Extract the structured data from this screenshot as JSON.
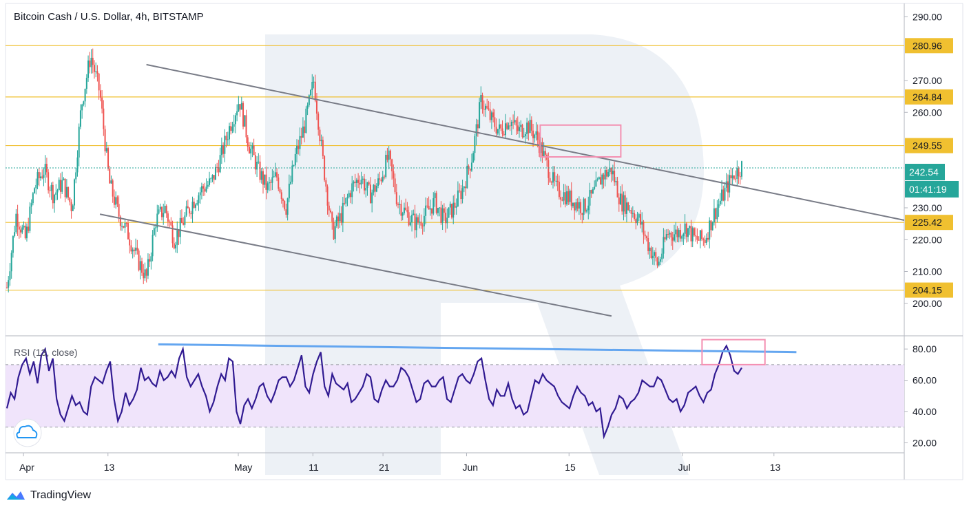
{
  "header": {
    "title": "Bitcoin Cash / U.S. Dollar, 4h, BITSTAMP"
  },
  "chart_data": [
    {
      "type": "candlestick",
      "title": "Bitcoin Cash / U.S. Dollar, 4h, BITSTAMP",
      "ylim": [
        190,
        294
      ],
      "y_ticks": [
        "290.00",
        "270.00",
        "260.00",
        "230.00",
        "220.00",
        "210.00",
        "200.00"
      ],
      "x_ticks": [
        "Apr",
        "13",
        "May",
        "11",
        "21",
        "Jun",
        "15",
        "Jul",
        "13"
      ],
      "last_price": "242.54",
      "countdown": "01:41:19",
      "levels": [
        {
          "value": 280.96,
          "label": "280.96"
        },
        {
          "value": 264.84,
          "label": "264.84"
        },
        {
          "value": 249.55,
          "label": "249.55"
        },
        {
          "value": 225.42,
          "label": "225.42"
        },
        {
          "value": 204.15,
          "label": "204.15"
        }
      ],
      "colors": {
        "up": "#26a69a",
        "down": "#ef5350",
        "level": "#f0c030",
        "trend": "#787b86",
        "price_line": "#26a69a",
        "box": "#f48fb1"
      },
      "price_path": [
        [
          0,
          205
        ],
        [
          6,
          228
        ],
        [
          12,
          220
        ],
        [
          18,
          237
        ],
        [
          24,
          242
        ],
        [
          30,
          234
        ],
        [
          36,
          238
        ],
        [
          42,
          230
        ],
        [
          48,
          262
        ],
        [
          54,
          278
        ],
        [
          60,
          266
        ],
        [
          66,
          238
        ],
        [
          72,
          228
        ],
        [
          78,
          222
        ],
        [
          84,
          214
        ],
        [
          90,
          208
        ],
        [
          96,
          226
        ],
        [
          102,
          230
        ],
        [
          108,
          220
        ],
        [
          114,
          226
        ],
        [
          120,
          232
        ],
        [
          126,
          236
        ],
        [
          132,
          238
        ],
        [
          138,
          246
        ],
        [
          144,
          256
        ],
        [
          150,
          264
        ],
        [
          156,
          250
        ],
        [
          162,
          242
        ],
        [
          168,
          236
        ],
        [
          174,
          240
        ],
        [
          180,
          230
        ],
        [
          186,
          246
        ],
        [
          192,
          256
        ],
        [
          198,
          270
        ],
        [
          204,
          244
        ],
        [
          210,
          222
        ],
        [
          216,
          228
        ],
        [
          222,
          236
        ],
        [
          228,
          240
        ],
        [
          234,
          234
        ],
        [
          240,
          238
        ],
        [
          246,
          246
        ],
        [
          252,
          232
        ],
        [
          258,
          228
        ],
        [
          264,
          225
        ],
        [
          270,
          228
        ],
        [
          276,
          232
        ],
        [
          282,
          226
        ],
        [
          288,
          230
        ],
        [
          294,
          236
        ],
        [
          300,
          246
        ],
        [
          306,
          264
        ],
        [
          312,
          258
        ],
        [
          318,
          254
        ],
        [
          324,
          258
        ],
        [
          330,
          254
        ],
        [
          336,
          256
        ],
        [
          342,
          252
        ],
        [
          348,
          244
        ],
        [
          354,
          236
        ],
        [
          360,
          234
        ],
        [
          366,
          232
        ],
        [
          372,
          230
        ],
        [
          378,
          234
        ],
        [
          384,
          240
        ],
        [
          390,
          242
        ],
        [
          396,
          232
        ],
        [
          402,
          230
        ],
        [
          408,
          226
        ],
        [
          414,
          218
        ],
        [
          420,
          212
        ],
        [
          426,
          222
        ],
        [
          432,
          222
        ],
        [
          438,
          224
        ],
        [
          444,
          220
        ],
        [
          450,
          220
        ],
        [
          456,
          228
        ],
        [
          462,
          234
        ],
        [
          468,
          240
        ],
        [
          474,
          243
        ]
      ],
      "candle_count": 480,
      "trendlines": [
        {
          "from": [
            90,
            275
          ],
          "to": [
            380,
            246
          ]
        },
        {
          "from": [
            60,
            228
          ],
          "to": [
            390,
            196
          ]
        }
      ],
      "highlight_box": {
        "from": [
          344,
          256
        ],
        "to": [
          396,
          246
        ]
      }
    },
    {
      "type": "line",
      "title": "RSI (13, close)",
      "ylim": [
        14,
        88
      ],
      "y_ticks": [
        "80.00",
        "60.00",
        "40.00",
        "20.00"
      ],
      "band": [
        30,
        70
      ],
      "values": [
        42,
        52,
        48,
        62,
        70,
        74,
        64,
        72,
        58,
        76,
        80,
        66,
        74,
        48,
        38,
        34,
        42,
        50,
        44,
        46,
        40,
        38,
        56,
        62,
        60,
        58,
        66,
        72,
        48,
        34,
        40,
        52,
        44,
        48,
        54,
        68,
        60,
        62,
        58,
        56,
        66,
        60,
        62,
        66,
        62,
        74,
        80,
        62,
        56,
        60,
        64,
        56,
        50,
        40,
        46,
        56,
        64,
        60,
        74,
        72,
        40,
        32,
        44,
        48,
        42,
        48,
        56,
        58,
        50,
        46,
        52,
        60,
        62,
        62,
        56,
        60,
        68,
        76,
        56,
        52,
        64,
        72,
        78,
        56,
        50,
        64,
        58,
        56,
        54,
        58,
        46,
        48,
        52,
        56,
        64,
        62,
        48,
        46,
        54,
        60,
        56,
        56,
        60,
        68,
        66,
        62,
        54,
        46,
        48,
        58,
        60,
        56,
        56,
        60,
        62,
        48,
        46,
        54,
        62,
        64,
        60,
        58,
        64,
        72,
        74,
        60,
        48,
        44,
        54,
        50,
        50,
        58,
        48,
        42,
        44,
        38,
        40,
        50,
        60,
        58,
        64,
        60,
        58,
        56,
        50,
        46,
        44,
        42,
        50,
        56,
        52,
        50,
        44,
        46,
        40,
        42,
        24,
        30,
        38,
        42,
        50,
        48,
        42,
        46,
        48,
        52,
        60,
        58,
        56,
        56,
        62,
        60,
        54,
        48,
        46,
        48,
        40,
        44,
        52,
        54,
        56,
        50,
        46,
        52,
        54,
        64,
        70,
        78,
        82,
        76,
        66,
        64,
        68
      ],
      "trendline": {
        "from": [
          0.17,
          83
        ],
        "to": [
          0.88,
          78
        ]
      },
      "highlight_box": {
        "from": [
          0.775,
          86
        ],
        "to": [
          0.845,
          70
        ]
      }
    }
  ],
  "footer": {
    "brand": "TradingView"
  }
}
